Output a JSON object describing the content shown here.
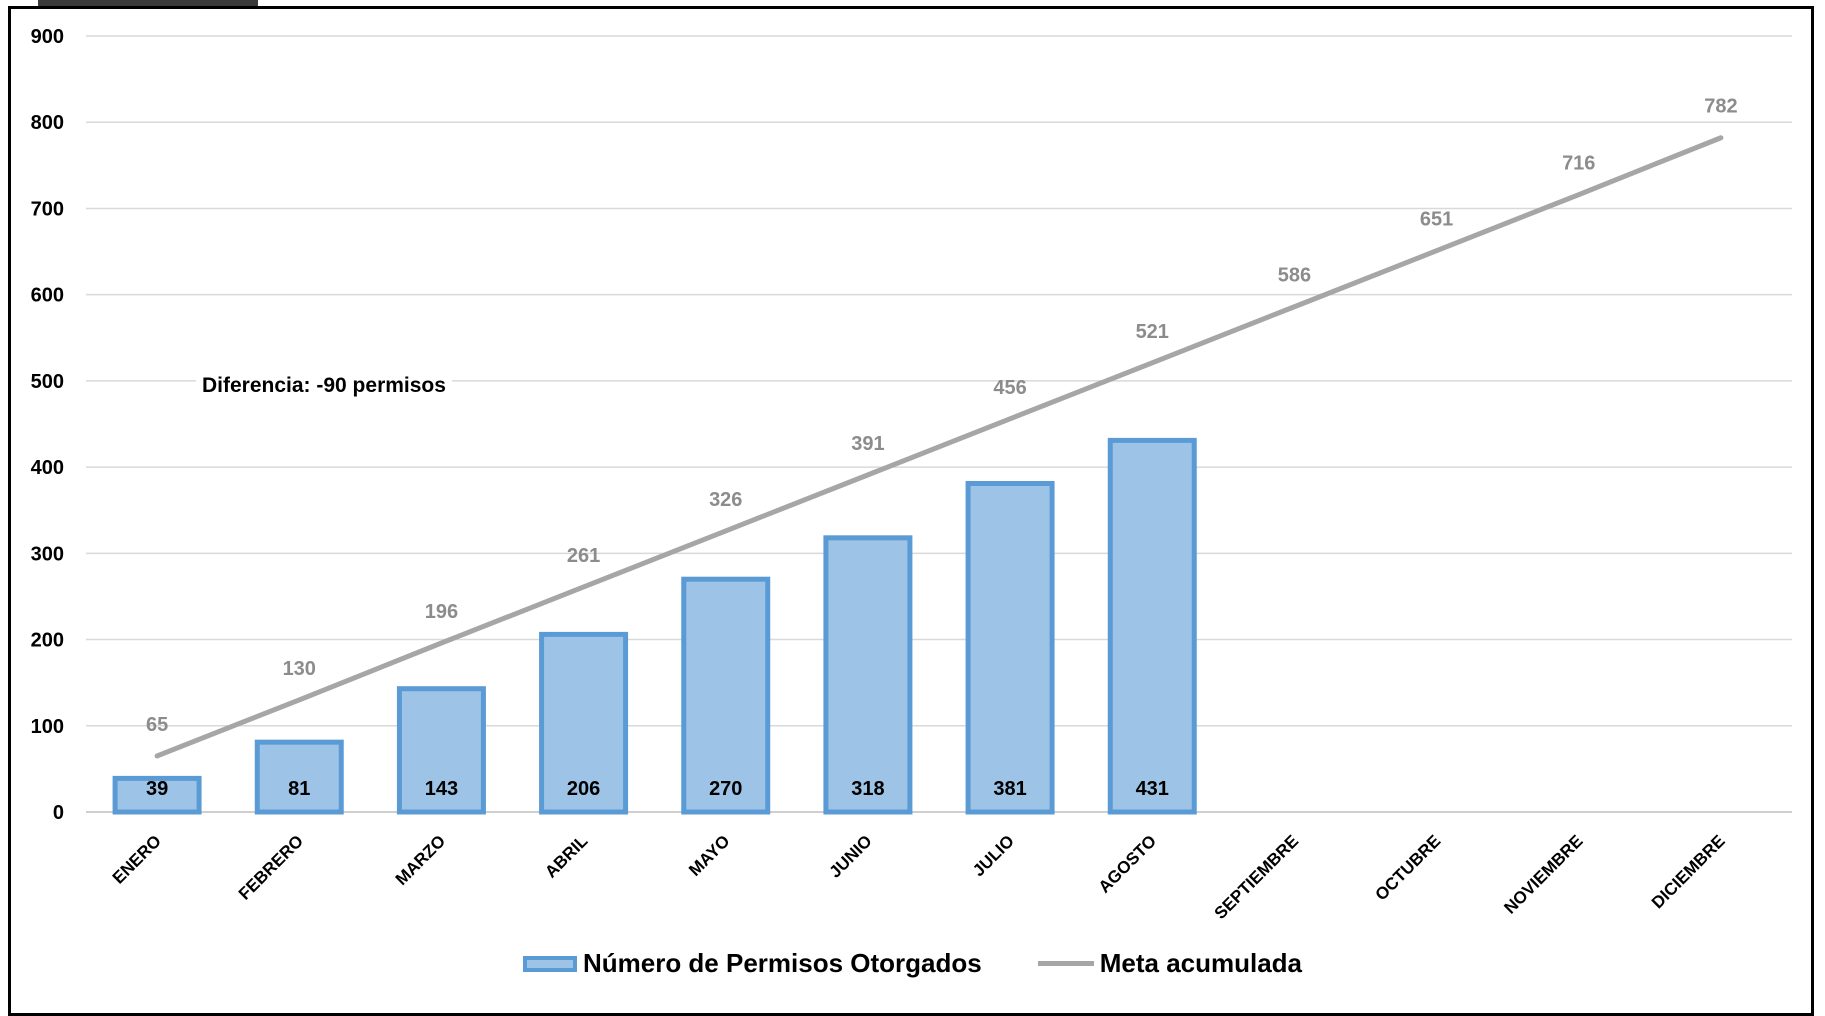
{
  "chart_data": {
    "type": "bar",
    "categories": [
      "ENERO",
      "FEBRERO",
      "MARZO",
      "ABRIL",
      "MAYO",
      "JUNIO",
      "JULIO",
      "AGOSTO",
      "SEPTIEMBRE",
      "OCTUBRE",
      "NOVIEMBRE",
      "DICIEMBRE"
    ],
    "series": [
      {
        "name": "Número de Permisos Otorgados",
        "kind": "bar",
        "color": "#9dc3e6",
        "border_color": "#5b9bd5",
        "values": [
          39,
          81,
          143,
          206,
          270,
          318,
          381,
          431,
          null,
          null,
          null,
          null
        ]
      },
      {
        "name": "Meta acumulada",
        "kind": "line",
        "color": "#a6a6a6",
        "values": [
          65,
          130,
          196,
          261,
          326,
          391,
          456,
          521,
          586,
          651,
          716,
          782
        ]
      }
    ],
    "yticks": [
      0,
      100,
      200,
      300,
      400,
      500,
      600,
      700,
      800,
      900
    ],
    "ylim": [
      0,
      900
    ],
    "grid": true,
    "legend_position": "bottom",
    "annotation": "Diferencia: -90 permisos"
  }
}
